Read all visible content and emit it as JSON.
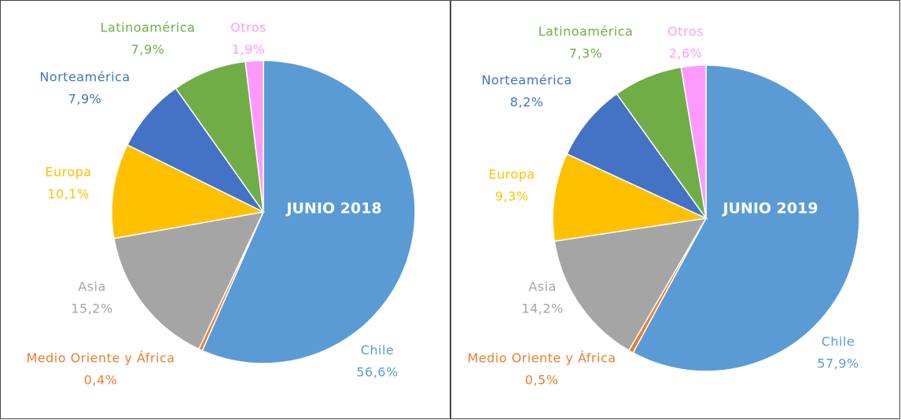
{
  "chart_data": [
    {
      "type": "pie",
      "title": "JUNIO 2018",
      "categories": [
        "Chile",
        "Medio Oriente y África",
        "Asia",
        "Europa",
        "Norteamérica",
        "Latinoamérica",
        "Otros"
      ],
      "values": [
        56.6,
        0.4,
        15.2,
        10.1,
        7.9,
        7.9,
        1.9
      ],
      "value_labels": [
        "56,6%",
        "0,4%",
        "15,2%",
        "10,1%",
        "7,9%",
        "7,9%",
        "1,9%"
      ],
      "colors": [
        "#5b9bd5",
        "#ed7d31",
        "#a5a5a5",
        "#ffc000",
        "#4472c4",
        "#70ad47",
        "#ff99ff"
      ]
    },
    {
      "type": "pie",
      "title": "JUNIO 2019",
      "categories": [
        "Chile",
        "Medio Oriente y África",
        "Asia",
        "Europa",
        "Norteamérica",
        "Latinoamérica",
        "Otros"
      ],
      "values": [
        57.9,
        0.5,
        14.2,
        9.3,
        8.2,
        7.3,
        2.6
      ],
      "value_labels": [
        "57,9%",
        "0,5%",
        "14,2%",
        "9,3%",
        "8,2%",
        "7,3%",
        "2,6%"
      ],
      "colors": [
        "#5b9bd5",
        "#ed7d31",
        "#a5a5a5",
        "#ffc000",
        "#4472c4",
        "#70ad47",
        "#ff99ff"
      ]
    }
  ]
}
